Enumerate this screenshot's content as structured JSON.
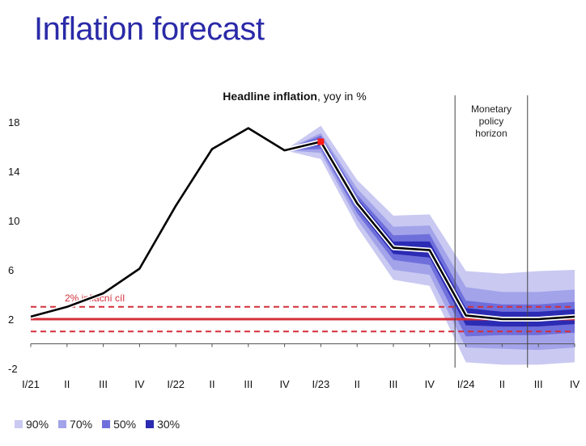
{
  "slide": {
    "title": "Inflation forecast"
  },
  "chart_data": {
    "type": "line",
    "title_bold": "Headline inflation",
    "title_rest": ", yoy in %",
    "ylim": [
      -2,
      19
    ],
    "yticks": [
      -2,
      2,
      6,
      10,
      14,
      18
    ],
    "categories": [
      "I/21",
      "II",
      "III",
      "IV",
      "I/22",
      "II",
      "III",
      "IV",
      "I/23",
      "II",
      "III",
      "IV",
      "I/24",
      "II",
      "III",
      "IV"
    ],
    "series": [
      {
        "values": [
          2.2,
          3.0,
          4.1,
          6.1,
          11.2,
          15.8,
          17.5,
          15.7,
          16.4,
          11.4,
          7.8,
          7.6,
          2.3,
          2.0,
          2.0,
          2.2
        ]
      }
    ],
    "highlight_point": {
      "x_index": 8,
      "value": 16.4
    },
    "forecast_start_index": 7,
    "fan_bands": [
      {
        "name": "90%",
        "color": "#c9c9f2",
        "upper": [
          15.7,
          17.7,
          13.3,
          10.4,
          10.5,
          5.9,
          5.7,
          5.9,
          6.0
        ],
        "lower": [
          15.7,
          15.0,
          9.5,
          5.2,
          4.7,
          -1.5,
          -1.7,
          -1.7,
          -1.5
        ]
      },
      {
        "name": "70%",
        "color": "#a3a3ea",
        "upper": [
          15.7,
          17.1,
          12.6,
          9.5,
          9.6,
          4.6,
          4.2,
          4.2,
          4.4
        ],
        "lower": [
          15.7,
          15.5,
          10.1,
          6.0,
          5.6,
          -0.3,
          -0.4,
          -0.5,
          -0.3
        ]
      },
      {
        "name": "50%",
        "color": "#6f6fdc",
        "upper": [
          15.7,
          16.9,
          12.1,
          8.8,
          8.9,
          3.5,
          3.2,
          3.2,
          3.4
        ],
        "lower": [
          15.7,
          15.8,
          10.6,
          6.8,
          6.4,
          0.6,
          0.7,
          0.7,
          0.9
        ]
      },
      {
        "name": "30%",
        "color": "#2b2bb3",
        "upper": [
          15.7,
          16.6,
          11.8,
          8.3,
          8.3,
          2.9,
          2.6,
          2.6,
          2.8
        ],
        "lower": [
          15.7,
          16.1,
          11.0,
          7.3,
          7.0,
          1.5,
          1.4,
          1.4,
          1.6
        ]
      }
    ],
    "target": {
      "value": 2,
      "band": [
        1,
        3
      ],
      "label": "2% inflační cíl",
      "color": "#d32f3a"
    },
    "policy_horizon": {
      "label_lines": [
        "Monetary",
        "policy",
        "horizon"
      ],
      "from_index": 11.7,
      "to_index": 13.7
    }
  },
  "legend": [
    {
      "label": "90%",
      "color": "#c9c9f2"
    },
    {
      "label": "70%",
      "color": "#a3a3ea"
    },
    {
      "label": "50%",
      "color": "#6f6fdc"
    },
    {
      "label": "30%",
      "color": "#2b2bb3"
    }
  ]
}
